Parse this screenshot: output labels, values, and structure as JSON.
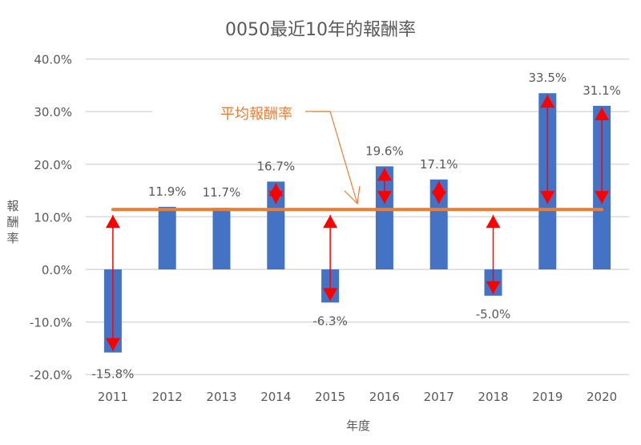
{
  "chart_data": {
    "type": "bar",
    "title": "0050最近10年的報酬率",
    "xlabel": "年度",
    "ylabel": "報酬率",
    "categories": [
      "2011",
      "2012",
      "2013",
      "2014",
      "2015",
      "2016",
      "2017",
      "2018",
      "2019",
      "2020"
    ],
    "values": [
      -15.8,
      11.9,
      11.7,
      16.7,
      -6.3,
      19.6,
      17.1,
      -5.0,
      33.5,
      31.1
    ],
    "data_labels": [
      "-15.8%",
      "11.9%",
      "11.7%",
      "16.7%",
      "-6.3%",
      "19.6%",
      "17.1%",
      "-5.0%",
      "33.5%",
      "31.1%"
    ],
    "ylim": [
      -20,
      40
    ],
    "yticks": [
      "-20.0%",
      "-10.0%",
      "0.0%",
      "10.0%",
      "20.0%",
      "30.0%",
      "40.0%"
    ],
    "average": 11.4,
    "average_label": "平均報酬率",
    "grid": true,
    "colors": {
      "bar": "#4472C4",
      "average": "#ED7D31",
      "arrow": "#FF0000",
      "grid": "#D9D9D9",
      "text": "#595959"
    }
  }
}
